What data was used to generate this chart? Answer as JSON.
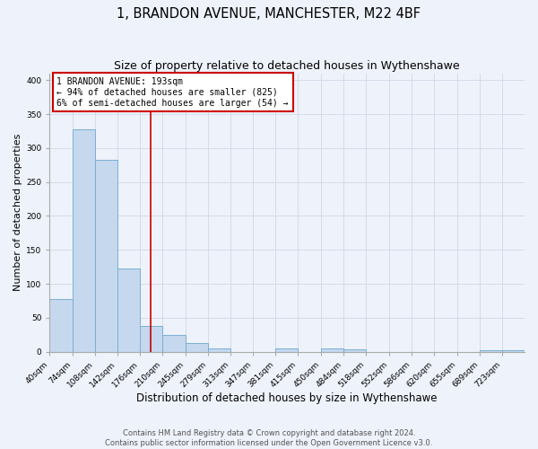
{
  "title": "1, BRANDON AVENUE, MANCHESTER, M22 4BF",
  "subtitle": "Size of property relative to detached houses in Wythenshawe",
  "xlabel": "Distribution of detached houses by size in Wythenshawe",
  "ylabel": "Number of detached properties",
  "bin_edges": [
    40,
    74,
    108,
    142,
    176,
    210,
    245,
    279,
    313,
    347,
    381,
    415,
    450,
    484,
    518,
    552,
    586,
    620,
    655,
    689,
    723,
    757
  ],
  "bin_heights": [
    78,
    328,
    282,
    123,
    38,
    25,
    13,
    5,
    0,
    0,
    5,
    0,
    5,
    3,
    0,
    0,
    0,
    0,
    0,
    2,
    2
  ],
  "bar_color": "#c5d8ee",
  "bar_edge_color": "#7aafd4",
  "bar_linewidth": 0.7,
  "vline_x": 193,
  "vline_color": "#cc0000",
  "vline_linewidth": 1.2,
  "annotation_line1": "1 BRANDON AVENUE: 193sqm",
  "annotation_line2": "← 94% of detached houses are smaller (825)",
  "annotation_line3": "6% of semi-detached houses are larger (54) →",
  "annotation_box_color": "#cc0000",
  "annotation_box_facecolor": "white",
  "annotation_fontsize": 7.0,
  "ylim": [
    0,
    410
  ],
  "yticks": [
    0,
    50,
    100,
    150,
    200,
    250,
    300,
    350,
    400
  ],
  "grid_color": "#d0d8e8",
  "background_color": "#eef2fa",
  "footer_line1": "Contains HM Land Registry data © Crown copyright and database right 2024.",
  "footer_line2": "Contains public sector information licensed under the Open Government Licence v3.0.",
  "title_fontsize": 10.5,
  "subtitle_fontsize": 9,
  "xlabel_fontsize": 8.5,
  "ylabel_fontsize": 8,
  "tick_label_fontsize": 6.5,
  "footer_fontsize": 6,
  "xtick_labels": [
    "40sqm",
    "74sqm",
    "108sqm",
    "142sqm",
    "176sqm",
    "210sqm",
    "245sqm",
    "279sqm",
    "313sqm",
    "347sqm",
    "381sqm",
    "415sqm",
    "450sqm",
    "484sqm",
    "518sqm",
    "552sqm",
    "586sqm",
    "620sqm",
    "655sqm",
    "689sqm",
    "723sqm"
  ]
}
